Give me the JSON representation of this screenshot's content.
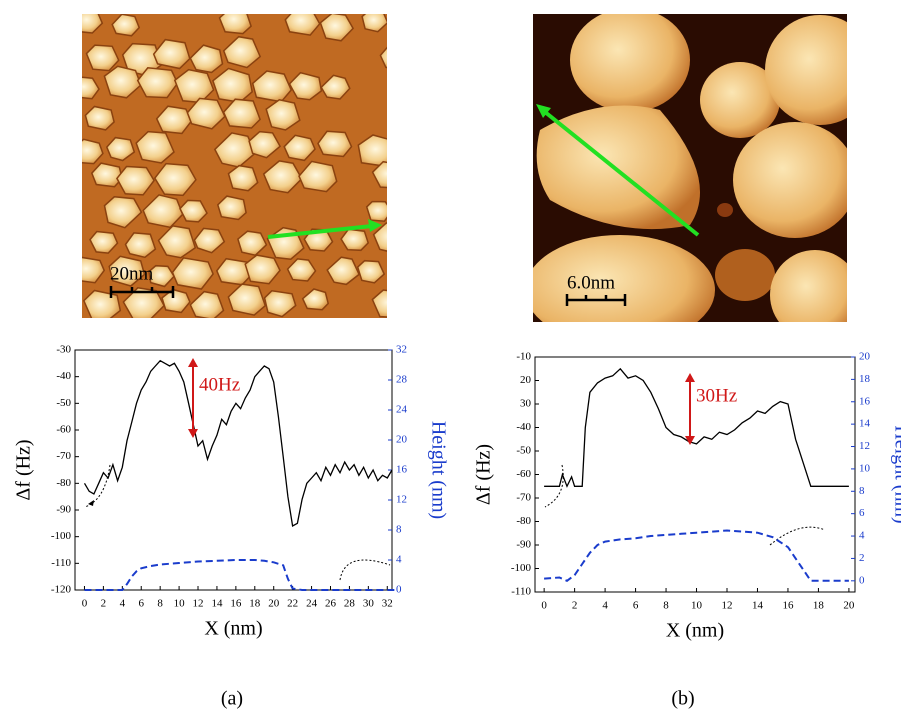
{
  "chart_data": [
    {
      "type": "line",
      "xlabel": "X (nm)",
      "ylabel": "Δf (Hz)",
      "y2label": "Height (nm)",
      "annotation": "40Hz",
      "xlim": [
        -1,
        32.5
      ],
      "xticks": [
        0,
        2,
        4,
        6,
        8,
        10,
        12,
        14,
        16,
        18,
        20,
        22,
        24,
        26,
        28,
        30,
        32
      ],
      "ylim": [
        -120,
        -30
      ],
      "yticks": [
        -120,
        -110,
        -100,
        -90,
        -80,
        -70,
        -60,
        -50,
        -40,
        -30
      ],
      "y2lim": [
        0,
        32
      ],
      "y2ticks": [
        0,
        4,
        8,
        12,
        16,
        20,
        24,
        28,
        32
      ],
      "series": [
        {
          "color": "#000000",
          "x": [
            0,
            0.5,
            1,
            1.5,
            2,
            2.5,
            3,
            3.5,
            4,
            4.5,
            5,
            5.5,
            6,
            6.5,
            7,
            7.5,
            8,
            8.5,
            9,
            9.5,
            10,
            10.5,
            11,
            11.5,
            12,
            12.5,
            13,
            13.5,
            14,
            14.5,
            15,
            15.5,
            16,
            16.5,
            17,
            17.5,
            18,
            18.5,
            19,
            19.5,
            20,
            20.5,
            21,
            21.5,
            22,
            22.5,
            23,
            23.5,
            24,
            24.5,
            25,
            25.5,
            26,
            26.5,
            27,
            27.5,
            28,
            28.5,
            29,
            29.5,
            30,
            30.5,
            31,
            31.5,
            32,
            32.5
          ],
          "values": [
            -80,
            -83,
            -84,
            -80,
            -76,
            -78,
            -73,
            -79,
            -74,
            -64,
            -57,
            -50,
            -45,
            -42,
            -38,
            -36,
            -34,
            -35,
            -36,
            -35,
            -38,
            -42,
            -50,
            -58,
            -66,
            -64,
            -71,
            -66,
            -62,
            -56,
            -58,
            -53,
            -50,
            -52,
            -48,
            -45,
            -40,
            -38,
            -36,
            -37,
            -42,
            -55,
            -70,
            -85,
            -96,
            -95,
            -86,
            -80,
            -78,
            -76,
            -79,
            -74,
            -77,
            -73,
            -76,
            -72,
            -75,
            -73,
            -77,
            -74,
            -78,
            -75,
            -79,
            -77,
            -78,
            -75
          ]
        },
        {
          "color": "#1a3ccc",
          "axis": "y2",
          "x": [
            0,
            4,
            4.5,
            5,
            5.5,
            6,
            7,
            8,
            10,
            12,
            14,
            16,
            18,
            19,
            20,
            21,
            21.5,
            22,
            23,
            33
          ],
          "values": [
            0,
            0,
            0.8,
            1.8,
            2.5,
            2.9,
            3.2,
            3.4,
            3.6,
            3.8,
            3.9,
            4.0,
            4.0,
            3.9,
            3.7,
            3.3,
            1.5,
            0.2,
            0,
            0
          ]
        }
      ]
    },
    {
      "type": "line",
      "xlabel": "X (nm)",
      "ylabel": "Δf (Hz)",
      "y2label": "Height (nm)",
      "annotation": "30Hz",
      "xlim": [
        -0.6,
        20.4
      ],
      "xticks": [
        0,
        2,
        4,
        6,
        8,
        10,
        12,
        14,
        16,
        18,
        20
      ],
      "ylim": [
        -110,
        -10
      ],
      "yticks": [
        -110,
        -100,
        -90,
        -80,
        -70,
        -60,
        -50,
        -40,
        {
          "value": -30,
          "label": "30"
        },
        {
          "value": -20,
          "label": "20"
        },
        -10
      ],
      "y2lim": [
        -1,
        20
      ],
      "y2ticks": [
        0,
        2,
        4,
        6,
        8,
        10,
        12,
        14,
        16,
        18,
        20
      ],
      "series": [
        {
          "color": "#000000",
          "x": [
            0,
            1,
            1.2,
            1.5,
            1.8,
            2,
            2.5,
            2.7,
            3,
            3.5,
            4,
            4.5,
            5,
            5.5,
            6,
            6.5,
            7,
            7.5,
            8,
            8.5,
            9,
            9.5,
            10,
            10.5,
            11,
            11.5,
            12,
            12.5,
            13,
            13.5,
            14,
            14.5,
            15,
            15.5,
            16,
            16.5,
            17,
            17.5,
            18,
            19,
            20
          ],
          "values": [
            -65,
            -65,
            -60,
            -65,
            -61,
            -65,
            -65,
            -40,
            -25,
            -21,
            -19,
            -18,
            -15,
            -19,
            -18,
            -20,
            -25,
            -32,
            -40,
            -43,
            -44,
            -46,
            -47,
            -44,
            -45,
            -42,
            -43,
            -41,
            -38,
            -36,
            -33,
            -34,
            -31,
            -29,
            -30,
            -45,
            -55,
            -65,
            -65,
            -65,
            -65
          ]
        },
        {
          "color": "#1a3ccc",
          "axis": "y2",
          "x": [
            0,
            1,
            1.5,
            2,
            2.5,
            3,
            3.5,
            4,
            5,
            6,
            7,
            8,
            9,
            10,
            11,
            12,
            13,
            14,
            15,
            16,
            16.5,
            17,
            17.5,
            18,
            19,
            20
          ],
          "values": [
            0.2,
            0.3,
            0,
            0.5,
            1.5,
            2.5,
            3.2,
            3.5,
            3.7,
            3.8,
            4.0,
            4.1,
            4.2,
            4.3,
            4.4,
            4.5,
            4.4,
            4.3,
            3.9,
            3,
            2,
            1,
            0,
            0,
            0,
            0
          ]
        }
      ]
    }
  ],
  "images": [
    {
      "scale_label": "20nm"
    },
    {
      "scale_label": "6.0nm"
    }
  ],
  "panels": [
    "(a)",
    "(b)"
  ]
}
